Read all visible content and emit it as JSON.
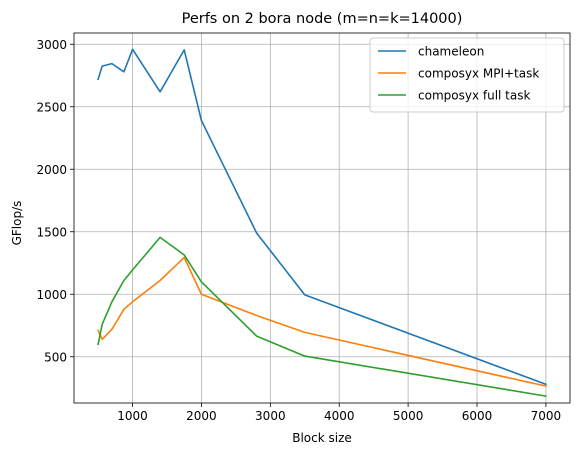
{
  "chart_data": {
    "type": "line",
    "title": "Perfs on 2 bora node (m=n=k=14000)",
    "xlabel": "Block size",
    "ylabel": "GFlop/s",
    "xlim": [
      150,
      7350
    ],
    "ylim": [
      130,
      3090
    ],
    "xticks": [
      1000,
      2000,
      3000,
      4000,
      5000,
      6000,
      7000
    ],
    "yticks": [
      500,
      1000,
      1500,
      2000,
      2500,
      3000
    ],
    "grid": true,
    "legend_position": "top-right",
    "series": [
      {
        "name": "chameleon",
        "color": "#1f77b4",
        "x": [
          500,
          560,
          700,
          875,
          1000,
          1400,
          1750,
          2000,
          2800,
          3500,
          7000
        ],
        "y": [
          2720,
          2825,
          2845,
          2780,
          2960,
          2620,
          2955,
          2390,
          1490,
          995,
          280
        ]
      },
      {
        "name": "composyx MPI+task",
        "color": "#ff7f0e",
        "x": [
          500,
          560,
          700,
          875,
          1000,
          1400,
          1750,
          2000,
          2800,
          3500,
          7000
        ],
        "y": [
          710,
          640,
          720,
          880,
          940,
          1110,
          1295,
          1000,
          830,
          695,
          265
        ]
      },
      {
        "name": "composyx full task",
        "color": "#2ca02c",
        "x": [
          500,
          560,
          700,
          875,
          1000,
          1400,
          1750,
          2000,
          2800,
          3500,
          7000
        ],
        "y": [
          600,
          760,
          940,
          1110,
          1195,
          1455,
          1315,
          1100,
          665,
          505,
          185
        ]
      }
    ]
  }
}
